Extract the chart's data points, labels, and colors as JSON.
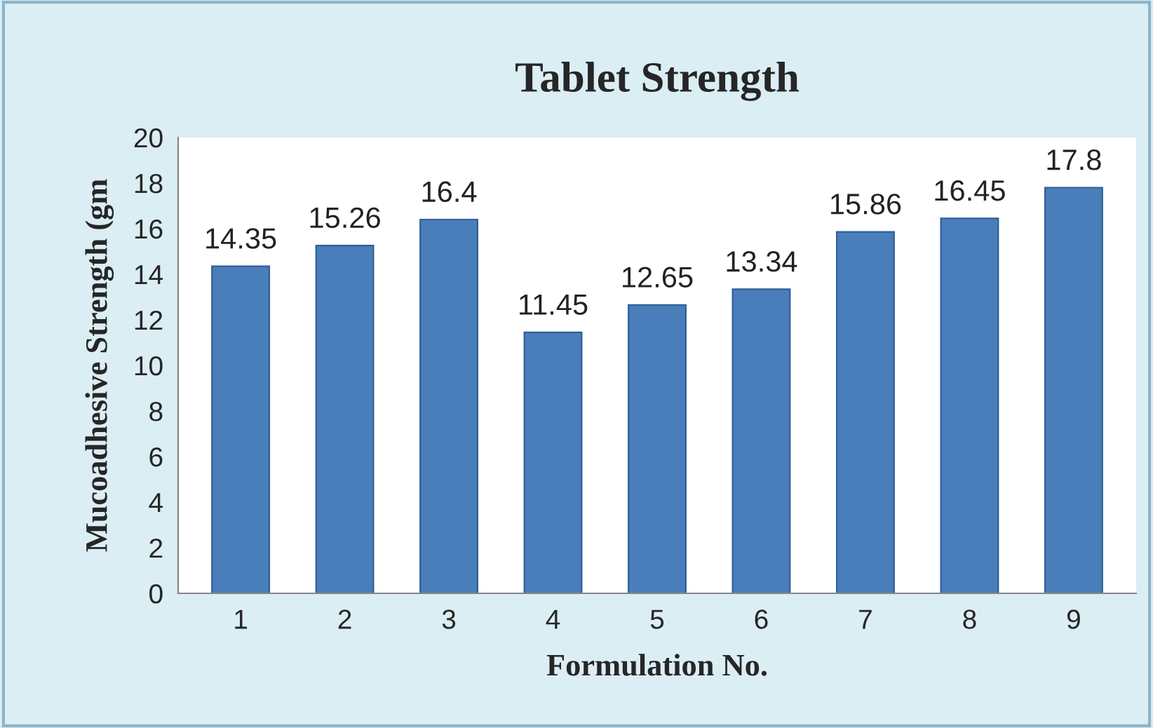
{
  "chart_data": {
    "type": "bar",
    "title": "Tablet Strength",
    "xlabel": "Formulation No.",
    "ylabel": "Mucoadhesive Strength (gm",
    "categories": [
      "1",
      "2",
      "3",
      "4",
      "5",
      "6",
      "7",
      "8",
      "9"
    ],
    "values": [
      14.35,
      15.26,
      16.4,
      11.45,
      12.65,
      13.34,
      15.86,
      16.45,
      17.8
    ],
    "color": "#4a7ebb",
    "ylim": [
      0,
      20
    ],
    "yticks": [
      0,
      2,
      4,
      6,
      8,
      10,
      12,
      14,
      16,
      18,
      20
    ],
    "grid": false,
    "data_labels": true
  }
}
